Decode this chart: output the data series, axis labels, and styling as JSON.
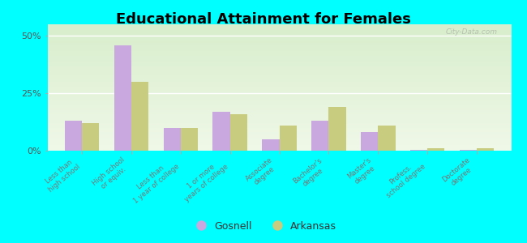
{
  "title": "Educational Attainment for Females",
  "categories": [
    "Less than\nhigh school",
    "High school\nor equiv.",
    "Less than\n1 year of college",
    "1 or more\nyears of college",
    "Associate\ndegree",
    "Bachelor's\ndegree",
    "Master's\ndegree",
    "Profess.\nschool degree",
    "Doctorate\ndegree"
  ],
  "gosnell": [
    13,
    46,
    10,
    17,
    5,
    13,
    8,
    0.3,
    0.3
  ],
  "arkansas": [
    12,
    30,
    10,
    16,
    11,
    19,
    11,
    1,
    1
  ],
  "gosnell_color": "#c9a8e0",
  "arkansas_color": "#c8cc7e",
  "background_color": "#00ffff",
  "plot_bg_color": "#edf5e0",
  "ylabel_ticks": [
    "0%",
    "25%",
    "50%"
  ],
  "yticks": [
    0,
    25,
    50
  ],
  "ylim": [
    0,
    55
  ],
  "bar_width": 0.35,
  "title_fontsize": 13,
  "tick_fontsize": 6.0,
  "legend_fontsize": 9,
  "watermark": "City-Data.com"
}
